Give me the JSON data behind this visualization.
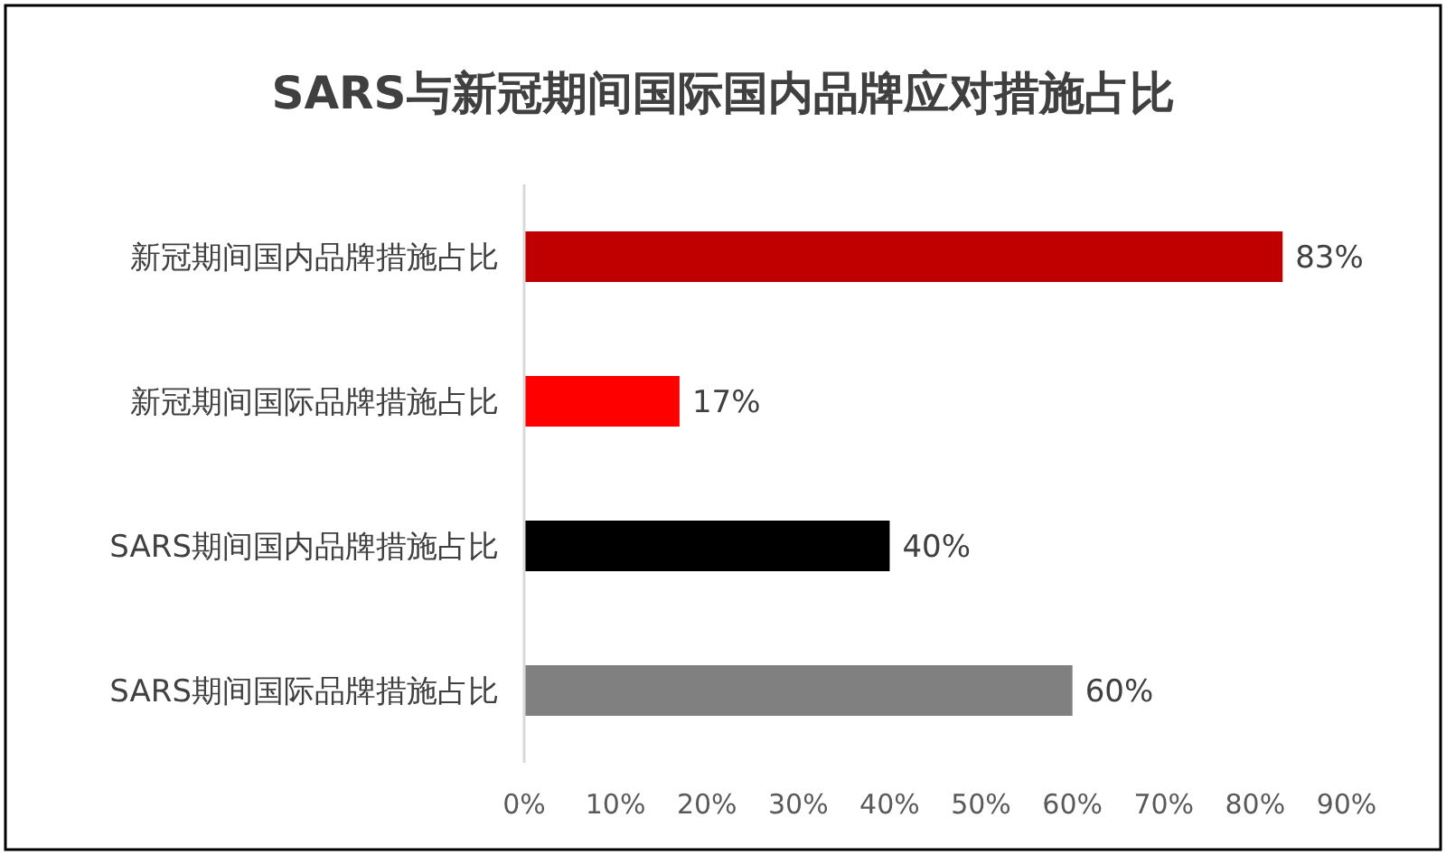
{
  "chart_data": {
    "type": "bar",
    "orientation": "horizontal",
    "title": "SARS与新冠期间国际国内品牌应对措施占比",
    "categories": [
      "新冠期间国内品牌措施占比",
      "新冠期间国际品牌措施占比",
      "SARS期间国内品牌措施占比",
      "SARS期间国际品牌措施占比"
    ],
    "values": [
      83,
      17,
      40,
      60
    ],
    "colors": [
      "#c00000",
      "#ff0000",
      "#000000",
      "#808080"
    ],
    "value_labels": [
      "83%",
      "17%",
      "40%",
      "60%"
    ],
    "xlim": [
      0,
      90
    ],
    "xticks": [
      {
        "value": 0,
        "label": "0%"
      },
      {
        "value": 10,
        "label": "10%"
      },
      {
        "value": 20,
        "label": "20%"
      },
      {
        "value": 30,
        "label": "30%"
      },
      {
        "value": 40,
        "label": "40%"
      },
      {
        "value": 50,
        "label": "50%"
      },
      {
        "value": 60,
        "label": "60%"
      },
      {
        "value": 70,
        "label": "70%"
      },
      {
        "value": 80,
        "label": "80%"
      },
      {
        "value": 90,
        "label": "90%"
      }
    ]
  }
}
